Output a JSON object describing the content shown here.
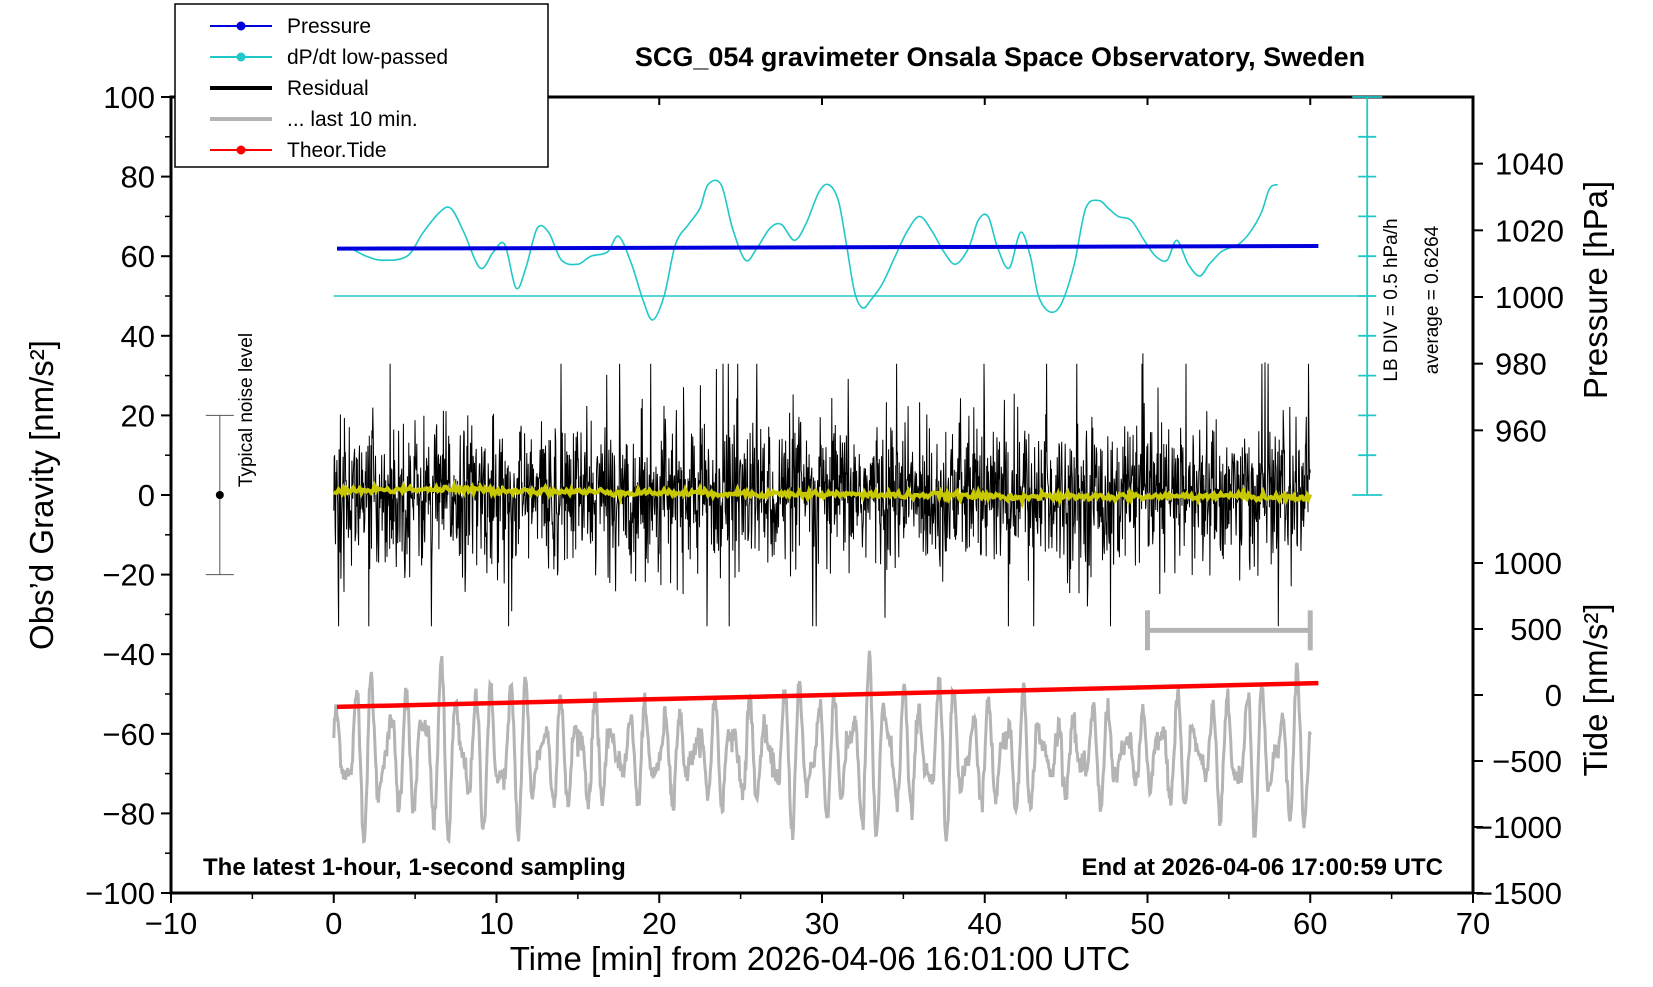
{
  "chart_data": {
    "type": "line",
    "title": "SCG_054 gravimeter Onsala Space Observatory, Sweden",
    "xlabel": "Time [min] from 2026-04-06 16:01:00 UTC",
    "ylabel_left": "Obs’d Gravity [nm/s²]",
    "ylabel_right_pressure": "Pressure [hPa]",
    "ylabel_right_tide": "Tide [nm/s²]",
    "xlim": [
      -10,
      70
    ],
    "ylim": [
      -100,
      100
    ],
    "xticks": [
      -10,
      0,
      10,
      20,
      30,
      40,
      50,
      60,
      70
    ],
    "yticks": [
      -100,
      -80,
      -60,
      -40,
      -20,
      0,
      20,
      40,
      60,
      80,
      100
    ],
    "x_tick_labels": [
      "−10",
      "0",
      "10",
      "20",
      "30",
      "40",
      "50",
      "60",
      "70"
    ],
    "y_tick_labels": [
      "−100",
      "−80",
      "−60",
      "−40",
      "−20",
      "0",
      "20",
      "40",
      "60",
      "80",
      "100"
    ],
    "pressure_axis": {
      "ticks": [
        960,
        980,
        1000,
        1020,
        1040
      ],
      "tick_labels": [
        "960",
        "980",
        "1000",
        "1020",
        "1040"
      ],
      "range": [
        940,
        1060
      ]
    },
    "tide_axis": {
      "ticks": [
        -1500,
        -1000,
        -500,
        0,
        500,
        1000
      ],
      "tick_labels": [
        "−1500",
        "−1000",
        "−500",
        "0",
        "500",
        "1000"
      ],
      "range": [
        -1500,
        1000
      ]
    },
    "legend": [
      {
        "label": "Pressure",
        "color": "#0000dd",
        "style": "line-dot"
      },
      {
        "label": "dP/dt low-passed",
        "color": "#20c8c8",
        "style": "line-dot"
      },
      {
        "label": "Residual",
        "color": "#000000",
        "style": "thick-line"
      },
      {
        "label": "... last 10 min.",
        "color": "#b4b4b4",
        "style": "thick-line"
      },
      {
        "label": "Theor.Tide",
        "color": "#ff0000",
        "style": "line-dot"
      }
    ],
    "series": [
      {
        "name": "Pressure",
        "axis": "pressure",
        "color": "#0000dd",
        "x": [
          0.2,
          60.5
        ],
        "values": [
          1014.5,
          1015.3
        ]
      },
      {
        "name": "dP/dt low-passed",
        "axis": "gravity",
        "color": "#20c8c8",
        "x": [
          0.3,
          1,
          2,
          3,
          4.5,
          5.5,
          6.5,
          7.2,
          8,
          9,
          9.8,
          10.5,
          11.2,
          11.8,
          12.5,
          13.2,
          14,
          15,
          15.8,
          16.8,
          17.5,
          18.3,
          19,
          19.6,
          20.3,
          21,
          21.8,
          22.5,
          23,
          23.8,
          24.5,
          25.3,
          26,
          26.8,
          27.5,
          28.3,
          29,
          29.8,
          30.4,
          31,
          31.5,
          32,
          32.5,
          33,
          33.7,
          34.5,
          35.2,
          36,
          36.8,
          37.5,
          38.2,
          39,
          39.6,
          40.2,
          40.8,
          41.5,
          42.2,
          42.8,
          43.3,
          44,
          44.7,
          45.5,
          46.2,
          47,
          47.6,
          48.2,
          49,
          49.8,
          50.5,
          51.2,
          51.8,
          52.5,
          53.2,
          53.8,
          54.5,
          55,
          55.6,
          56.3,
          57,
          57.5,
          58
        ],
        "values": [
          62,
          62,
          60,
          59,
          60,
          66,
          71,
          72,
          66,
          57,
          61,
          63,
          52,
          57,
          67,
          66,
          59,
          58,
          60,
          61,
          65,
          58,
          49,
          44,
          50,
          63,
          68,
          72,
          78,
          78,
          67,
          59,
          62,
          67,
          68,
          64,
          68,
          76,
          78,
          74,
          63,
          51,
          47,
          49,
          53,
          60,
          66,
          70,
          66,
          61,
          58,
          62,
          69,
          70,
          62,
          57,
          66,
          60,
          50,
          46,
          48,
          58,
          72,
          74,
          72,
          70,
          69,
          64,
          60,
          59,
          64,
          58,
          55,
          58,
          61,
          62,
          63,
          66,
          71,
          77,
          78
        ]
      },
      {
        "name": "LB baseline",
        "axis": "gravity",
        "color": "#20c8c8",
        "x": [
          0,
          63.5
        ],
        "values": [
          50,
          50
        ]
      },
      {
        "name": "Residual",
        "axis": "gravity",
        "color": "#000000",
        "x_range": [
          0,
          60
        ],
        "mean": 0,
        "typical_amplitude": 15,
        "peak_max": 42,
        "peak_min": -38
      },
      {
        "name": "Residual smoothed",
        "axis": "gravity",
        "color": "#c8c800",
        "x": [
          0,
          5,
          10,
          15,
          20,
          25,
          30,
          35,
          40,
          45,
          50,
          55,
          60
        ],
        "values": [
          1,
          1.5,
          1.2,
          0.8,
          0.6,
          0.4,
          0.2,
          0,
          -0.3,
          -0.5,
          -0.4,
          -0.2,
          -0.8
        ]
      },
      {
        "name": "... last 10 min.",
        "axis": "gravity",
        "color": "#b4b4b4",
        "x_range": [
          0,
          60
        ],
        "center": -65,
        "typical_amplitude": 12,
        "peak_max": -34,
        "peak_min": -87
      },
      {
        "name": "Theor.Tide",
        "axis": "tide",
        "color": "#ff0000",
        "x": [
          0.2,
          60.5
        ],
        "values": [
          -90,
          90
        ]
      }
    ],
    "lb_scale": {
      "label": "LB DIV = 0.5 hPa/h",
      "average_label": "average = 0.6264",
      "x": 63.5,
      "y_range": [
        0,
        100
      ],
      "divisions": 10
    },
    "noise_bar": {
      "label": "Typical noise level",
      "x": -7,
      "center": 0,
      "range": [
        -20,
        20
      ]
    },
    "last10_marker": {
      "x_range": [
        50,
        60
      ],
      "y": -34
    },
    "bottom_left_note": "The latest 1-hour, 1-second sampling",
    "bottom_right_note": "End at 2026-04-06 17:00:59 UTC"
  }
}
